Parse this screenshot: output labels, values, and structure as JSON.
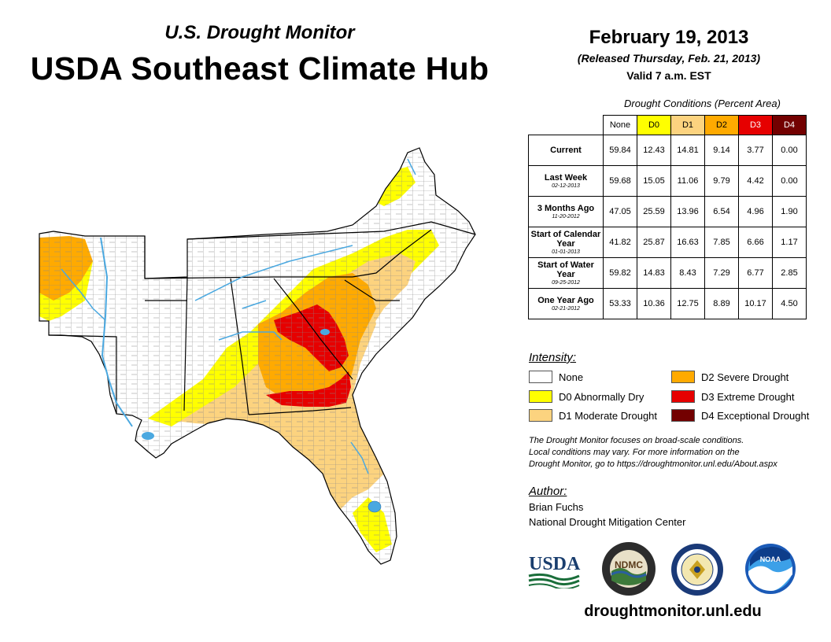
{
  "header": {
    "subtitle": "U.S. Drought Monitor",
    "title": "USDA Southeast Climate Hub",
    "date": "February 19, 2013",
    "released": "(Released Thursday, Feb. 21, 2013)",
    "valid": "Valid 7 a.m. EST"
  },
  "table": {
    "caption": "Drought Conditions (Percent Area)",
    "columns": [
      {
        "label": "None",
        "color": "#ffffff",
        "text_color": "#000000"
      },
      {
        "label": "D0",
        "color": "#ffff00",
        "text_color": "#000000"
      },
      {
        "label": "D1",
        "color": "#fcd37f",
        "text_color": "#000000"
      },
      {
        "label": "D2",
        "color": "#ffaa00",
        "text_color": "#000000"
      },
      {
        "label": "D3",
        "color": "#e60000",
        "text_color": "#ffffff"
      },
      {
        "label": "D4",
        "color": "#730000",
        "text_color": "#ffffff"
      }
    ],
    "rows": [
      {
        "label": "Current",
        "date": "",
        "values": [
          "59.84",
          "12.43",
          "14.81",
          "9.14",
          "3.77",
          "0.00"
        ]
      },
      {
        "label": "Last Week",
        "date": "02-12-2013",
        "values": [
          "59.68",
          "15.05",
          "11.06",
          "9.79",
          "4.42",
          "0.00"
        ]
      },
      {
        "label": "3 Months Ago",
        "date": "11-20-2012",
        "values": [
          "47.05",
          "25.59",
          "13.96",
          "6.54",
          "4.96",
          "1.90"
        ]
      },
      {
        "label": "Start of Calendar Year",
        "date": "01-01-2013",
        "values": [
          "41.82",
          "25.87",
          "16.63",
          "7.85",
          "6.66",
          "1.17"
        ]
      },
      {
        "label": "Start of Water Year",
        "date": "09-25-2012",
        "values": [
          "59.82",
          "14.83",
          "8.43",
          "7.29",
          "6.77",
          "2.85"
        ]
      },
      {
        "label": "One Year Ago",
        "date": "02-21-2012",
        "values": [
          "53.33",
          "10.36",
          "12.75",
          "8.89",
          "10.17",
          "4.50"
        ]
      }
    ]
  },
  "legend": {
    "title": "Intensity:",
    "items": [
      {
        "label": "None",
        "color": "#ffffff"
      },
      {
        "label": "D0 Abnormally Dry",
        "color": "#ffff00"
      },
      {
        "label": "D1 Moderate Drought",
        "color": "#fcd37f"
      },
      {
        "label": "D2 Severe Drought",
        "color": "#ffaa00"
      },
      {
        "label": "D3 Extreme Drought",
        "color": "#e60000"
      },
      {
        "label": "D4 Exceptional Drought",
        "color": "#730000"
      }
    ]
  },
  "note": {
    "line1": "The Drought Monitor focuses on broad-scale conditions.",
    "line2": "Local conditions may vary. For more information on the",
    "line3": "Drought Monitor, go to https://droughtmonitor.unl.edu/About.aspx"
  },
  "author": {
    "label": "Author:",
    "name": "Brian Fuchs",
    "org": "National Drought Mitigation Center"
  },
  "logos": {
    "usda": "USDA",
    "ndmc": "NDMC",
    "noaa": "NOAA"
  },
  "map": {
    "water_color": "#4aa8e0",
    "county_line_color": "#7a7a7a"
  },
  "website": "droughtmonitor.unl.edu"
}
